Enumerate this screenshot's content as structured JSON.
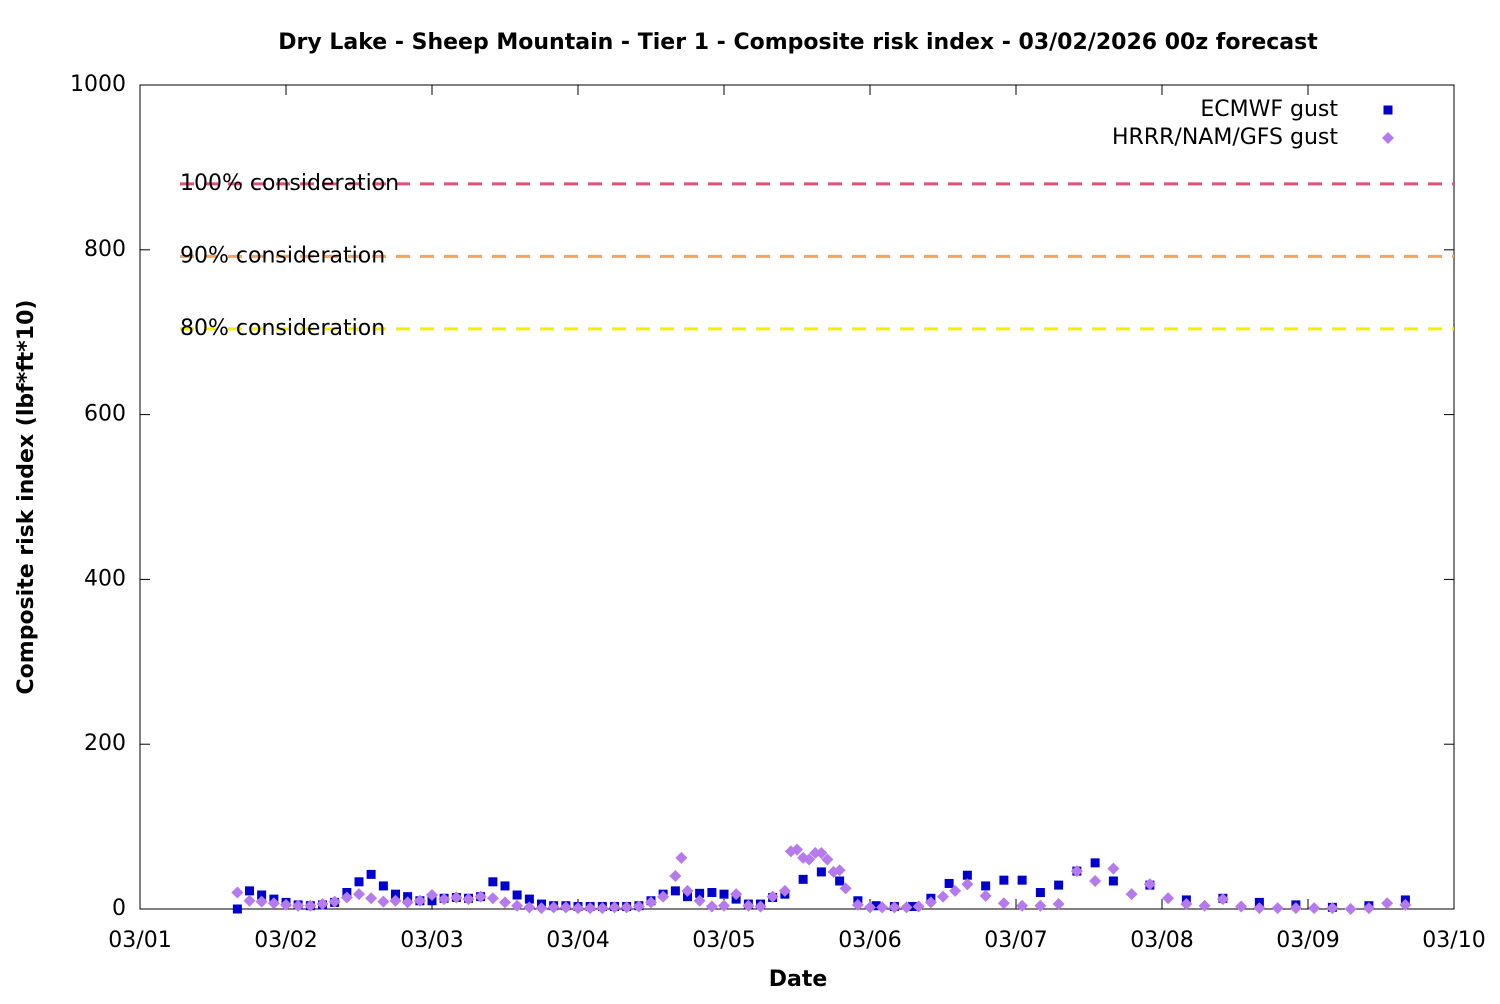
{
  "chart_data": {
    "type": "scatter",
    "title": "Dry Lake - Sheep Mountain - Tier 1 - Composite risk index - 03/02/2026 00z forecast",
    "x_label": "Date",
    "y_label": "Composite risk index (lbf*ft*10)",
    "xlim": [
      1,
      10
    ],
    "xticks": [
      {
        "value": 1,
        "label": "03/01"
      },
      {
        "value": 2,
        "label": "03/02"
      },
      {
        "value": 3,
        "label": "03/03"
      },
      {
        "value": 4,
        "label": "03/04"
      },
      {
        "value": 5,
        "label": "03/05"
      },
      {
        "value": 6,
        "label": "03/06"
      },
      {
        "value": 7,
        "label": "03/07"
      },
      {
        "value": 8,
        "label": "03/08"
      },
      {
        "value": 9,
        "label": "03/09"
      },
      {
        "value": 10,
        "label": "03/10"
      }
    ],
    "ylim": [
      0,
      1000
    ],
    "yticks": [
      0,
      200,
      400,
      600,
      800,
      1000
    ],
    "legend": "top-right",
    "reference_lines": [
      {
        "value": 880,
        "label": "100% consideration",
        "color": "#e0507a"
      },
      {
        "value": 792,
        "label": "90% consideration",
        "color": "#f4a460"
      },
      {
        "value": 704,
        "label": "80% consideration",
        "color": "#f0f000"
      }
    ],
    "series": [
      {
        "name": "ECMWF gust",
        "color": "#0000cc",
        "marker": "square",
        "x": [
          1.667,
          1.75,
          1.833,
          1.917,
          2.0,
          2.083,
          2.167,
          2.25,
          2.333,
          2.417,
          2.5,
          2.583,
          2.667,
          2.75,
          2.833,
          2.917,
          3.0,
          3.083,
          3.167,
          3.25,
          3.333,
          3.417,
          3.5,
          3.583,
          3.667,
          3.75,
          3.833,
          3.917,
          4.0,
          4.083,
          4.167,
          4.25,
          4.333,
          4.417,
          4.5,
          4.583,
          4.667,
          4.75,
          4.833,
          4.917,
          5.0,
          5.083,
          5.167,
          5.25,
          5.333,
          5.417,
          5.542,
          5.667,
          5.792,
          5.917,
          6.042,
          6.167,
          6.292,
          6.417,
          6.542,
          6.667,
          6.792,
          6.917,
          7.042,
          7.167,
          7.292,
          7.417,
          7.542,
          7.667,
          7.917,
          8.167,
          8.417,
          8.667,
          8.917,
          9.167,
          9.417,
          9.667
        ],
        "values": [
          0,
          22,
          17,
          12,
          8,
          5,
          4,
          5,
          8,
          20,
          33,
          42,
          28,
          18,
          15,
          10,
          10,
          13,
          14,
          13,
          15,
          33,
          28,
          17,
          12,
          6,
          4,
          4,
          3,
          3,
          3,
          3,
          3,
          4,
          10,
          18,
          22,
          15,
          19,
          20,
          18,
          12,
          6,
          6,
          14,
          18,
          36,
          45,
          34,
          10,
          4,
          3,
          3,
          13,
          31,
          41,
          28,
          35,
          35,
          20,
          29,
          46,
          56,
          34,
          29,
          11,
          13,
          8,
          5,
          2,
          4,
          11
        ]
      },
      {
        "name": "HRRR/NAM/GFS gust",
        "color": "#b57bee",
        "marker": "diamond",
        "x": [
          1.667,
          1.75,
          1.833,
          1.917,
          2.0,
          2.083,
          2.167,
          2.25,
          2.333,
          2.417,
          2.5,
          2.583,
          2.667,
          2.75,
          2.833,
          2.917,
          3.0,
          3.083,
          3.167,
          3.25,
          3.333,
          3.417,
          3.5,
          3.583,
          3.667,
          3.75,
          3.833,
          3.917,
          4.0,
          4.083,
          4.167,
          4.25,
          4.333,
          4.417,
          4.5,
          4.583,
          4.667,
          4.708,
          4.75,
          4.833,
          4.917,
          5.0,
          5.083,
          5.167,
          5.25,
          5.333,
          5.417,
          5.458,
          5.5,
          5.542,
          5.583,
          5.625,
          5.667,
          5.708,
          5.75,
          5.792,
          5.833,
          5.917,
          6.0,
          6.083,
          6.167,
          6.25,
          6.333,
          6.417,
          6.5,
          6.583,
          6.667,
          6.792,
          6.917,
          7.042,
          7.167,
          7.292,
          7.417,
          7.542,
          7.667,
          7.792,
          7.917,
          8.042,
          8.167,
          8.292,
          8.417,
          8.542,
          8.667,
          8.792,
          8.917,
          9.042,
          9.167,
          9.292,
          9.417,
          9.542,
          9.667
        ],
        "values": [
          20,
          10,
          9,
          7,
          5,
          4,
          4,
          6,
          9,
          14,
          18,
          13,
          9,
          10,
          8,
          10,
          17,
          12,
          14,
          12,
          15,
          13,
          8,
          4,
          2,
          1,
          2,
          2,
          1,
          1,
          1,
          2,
          2,
          3,
          8,
          15,
          40,
          62,
          22,
          10,
          3,
          4,
          18,
          4,
          3,
          15,
          22,
          70,
          72,
          62,
          60,
          68,
          68,
          60,
          45,
          47,
          25,
          5,
          2,
          2,
          2,
          2,
          3,
          8,
          15,
          22,
          30,
          16,
          7,
          4,
          4,
          6,
          46,
          34,
          49,
          18,
          30,
          13,
          6,
          4,
          12,
          3,
          1,
          1,
          1,
          1,
          1,
          0,
          1,
          7,
          5
        ]
      }
    ]
  }
}
